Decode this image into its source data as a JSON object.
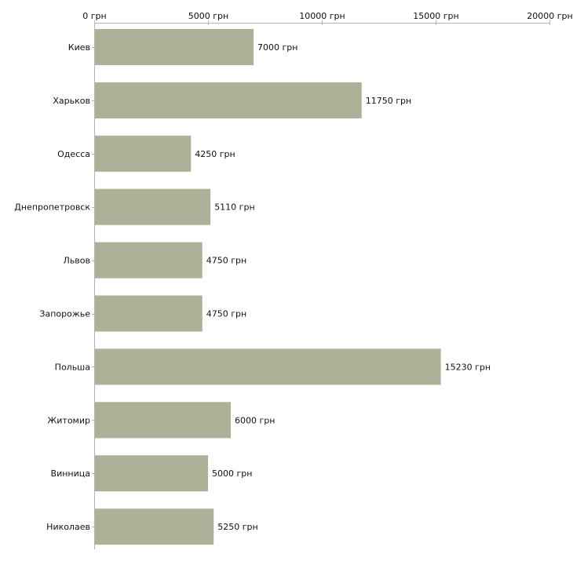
{
  "chart_data": {
    "type": "bar",
    "orientation": "horizontal",
    "title": "",
    "xlabel": "",
    "ylabel": "",
    "categories": [
      "Киев",
      "Харьков",
      "Одесса",
      "Днепропетровск",
      "Львов",
      "Запорожье",
      "Польша",
      "Житомир",
      "Винница",
      "Николаев"
    ],
    "values": [
      7000,
      11750,
      4250,
      5110,
      4750,
      4750,
      15230,
      6000,
      5000,
      5250
    ],
    "value_labels": [
      "7000 грн",
      "11750 грн",
      "4250 грн",
      "5110 грн",
      "4750 грн",
      "4750 грн",
      "15230 грн",
      "6000 грн",
      "5000 грн",
      "5250 грн"
    ],
    "xlim": [
      0,
      20000
    ],
    "x_ticks": [
      0,
      5000,
      10000,
      15000,
      20000
    ],
    "x_tick_labels": [
      "0 грн",
      "5000 грн",
      "10000 грн",
      "15000 грн",
      "20000 грн"
    ],
    "x_axis_position": "top",
    "grid": false,
    "legend": "none",
    "bar_color": "#acb298",
    "axis_color": "#b3b3b3"
  }
}
